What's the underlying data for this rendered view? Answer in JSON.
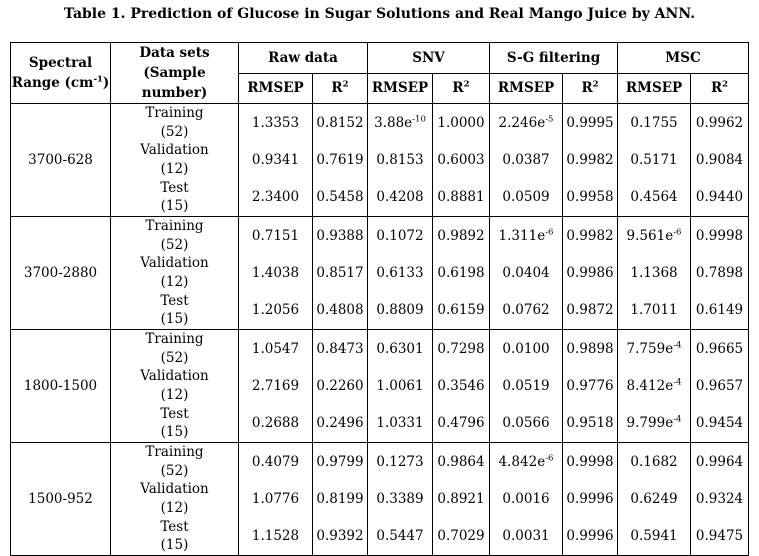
{
  "caption": "Table 1. Prediction of Glucose in Sugar Solutions and Real Mango Juice by ANN.",
  "headers": {
    "range_line1": "Spectral",
    "range_line2": "Range (cm",
    "range_sup": "-1",
    "range_close": ")",
    "sets_line1": "Data sets",
    "sets_line2": "(Sample number)",
    "groups": [
      "Raw data",
      "SNV",
      "S-G filtering",
      "MSC"
    ],
    "rmsep": "RMSEP",
    "r2": "R",
    "r2_sup": "2"
  },
  "dataset_labels": [
    "Training",
    "(52)",
    "Validation",
    "(12)",
    "Test",
    "(15)"
  ],
  "rows": [
    {
      "range": "3700-628",
      "raw": [
        [
          "1.3353",
          "0.8152"
        ],
        [
          "0.9341",
          "0.7619"
        ],
        [
          "2.3400",
          "0.5458"
        ]
      ],
      "snv": [
        [
          "3.88e",
          "-10",
          "1.0000"
        ],
        [
          "0.8153",
          "",
          "0.6003"
        ],
        [
          "0.4208",
          "",
          "0.8881"
        ]
      ],
      "sg": [
        [
          "2.246e",
          "-5",
          "0.9995"
        ],
        [
          "0.0387",
          "",
          "0.9982"
        ],
        [
          "0.0509",
          "",
          "0.9958"
        ]
      ],
      "msc": [
        [
          "0.1755",
          "",
          "0.9962"
        ],
        [
          "0.5171",
          "",
          "0.9084"
        ],
        [
          "0.4564",
          "",
          "0.9440"
        ]
      ]
    },
    {
      "range": "3700-2880",
      "raw": [
        [
          "0.7151",
          "0.9388"
        ],
        [
          "1.4038",
          "0.8517"
        ],
        [
          "1.2056",
          "0.4808"
        ]
      ],
      "snv": [
        [
          "0.1072",
          "",
          "0.9892"
        ],
        [
          "0.6133",
          "",
          "0.6198"
        ],
        [
          "0.8809",
          "",
          "0.6159"
        ]
      ],
      "sg": [
        [
          "1.311e",
          "-6",
          "0.9982"
        ],
        [
          "0.0404",
          "",
          "0.9986"
        ],
        [
          "0.0762",
          "",
          "0.9872"
        ]
      ],
      "msc": [
        [
          "9.561e",
          "-6",
          "0.9998"
        ],
        [
          "1.1368",
          "",
          "0.7898"
        ],
        [
          "1.7011",
          "",
          "0.6149"
        ]
      ]
    },
    {
      "range": "1800-1500",
      "raw": [
        [
          "1.0547",
          "0.8473"
        ],
        [
          "2.7169",
          "0.2260"
        ],
        [
          "0.2688",
          "0.2496"
        ]
      ],
      "snv": [
        [
          "0.6301",
          "",
          "0.7298"
        ],
        [
          "1.0061",
          "",
          "0.3546"
        ],
        [
          "1.0331",
          "",
          "0.4796"
        ]
      ],
      "sg": [
        [
          "0.0100",
          "",
          "0.9898"
        ],
        [
          "0.0519",
          "",
          "0.9776"
        ],
        [
          "0.0566",
          "",
          "0.9518"
        ]
      ],
      "msc": [
        [
          "7.759e",
          "-4",
          "0.9665"
        ],
        [
          "8.412e",
          "-4",
          "0.9657"
        ],
        [
          "9.799e",
          "-4",
          "0.9454"
        ]
      ]
    },
    {
      "range": "1500-952",
      "raw": [
        [
          "0.4079",
          "0.9799"
        ],
        [
          "1.0776",
          "0.8199"
        ],
        [
          "1.1528",
          "0.9392"
        ]
      ],
      "snv": [
        [
          "0.1273",
          "",
          "0.9864"
        ],
        [
          "0.3389",
          "",
          "0.8921"
        ],
        [
          "0.5447",
          "",
          "0.7029"
        ]
      ],
      "sg": [
        [
          "4.842e",
          "-6",
          "0.9998"
        ],
        [
          "0.0016",
          "",
          "0.9996"
        ],
        [
          "0.0031",
          "",
          "0.9996"
        ]
      ],
      "msc": [
        [
          "0.1682",
          "",
          "0.9964"
        ],
        [
          "0.6249",
          "",
          "0.9324"
        ],
        [
          "0.5941",
          "",
          "0.9475"
        ]
      ]
    }
  ]
}
